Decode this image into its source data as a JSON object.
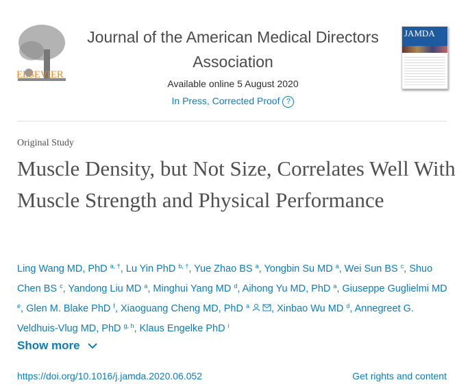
{
  "header": {
    "publisher": "ELSEVIER",
    "journal_title": "Journal of the American Medical Directors Association",
    "available": "Available online 5 August 2020",
    "status": "In Press, Corrected Proof",
    "help": "?",
    "cover_title": "JAMDA"
  },
  "article": {
    "type": "Original Study",
    "title": "Muscle Density, but Not Size, Correlates Well With Muscle Strength and Physical Performance",
    "authors": [
      {
        "name": "Ling Wang MD, PhD",
        "sup": "a, †"
      },
      {
        "name": "Lu Yin PhD",
        "sup": "b, †"
      },
      {
        "name": "Yue Zhao BS",
        "sup": "a"
      },
      {
        "name": "Yongbin Su MD",
        "sup": "a"
      },
      {
        "name": "Wei Sun BS",
        "sup": "c"
      },
      {
        "name": "Shuo Chen BS",
        "sup": "c"
      },
      {
        "name": "Yandong Liu MD",
        "sup": "a"
      },
      {
        "name": "Minghui Yang MD",
        "sup": "d"
      },
      {
        "name": "Aihong Yu MD, PhD",
        "sup": "a"
      },
      {
        "name": "Giuseppe Guglielmi MD",
        "sup": "e"
      },
      {
        "name": "Glen M. Blake PhD",
        "sup": "f"
      },
      {
        "name": "Xiaoguang Cheng MD, PhD",
        "sup": "a",
        "icons": true
      },
      {
        "name": "Xinbao Wu MD",
        "sup": "d"
      },
      {
        "name": "Annegreet G. Veldhuis-Vlug MD, PhD",
        "sup": "g, h"
      },
      {
        "name": "Klaus Engelke PhD",
        "sup": "i"
      }
    ],
    "show_more": "Show more",
    "doi": "https://doi.org/10.1016/j.jamda.2020.06.052",
    "rights": "Get rights and content"
  }
}
